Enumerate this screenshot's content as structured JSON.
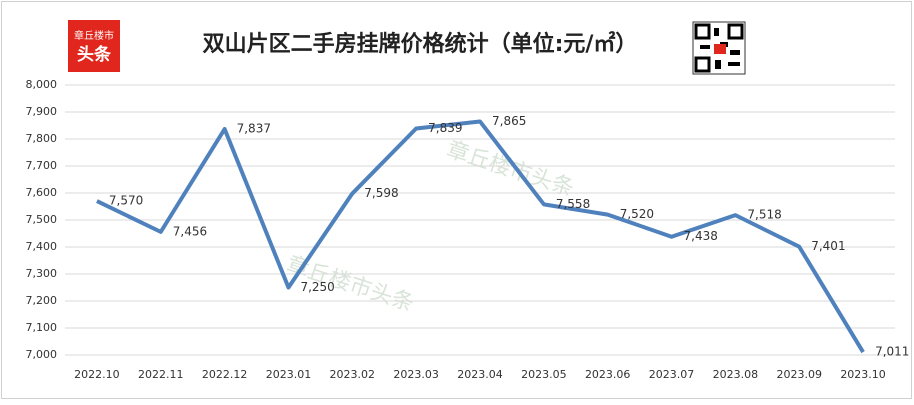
{
  "chart_data": {
    "type": "line",
    "title": "双山片区二手房挂牌价格统计（单位:元/㎡）",
    "logo": [
      "章丘楼市",
      "头条"
    ],
    "watermark": "章丘楼市头条",
    "categories": [
      "2022.10",
      "2022.11",
      "2022.12",
      "2023.01",
      "2023.02",
      "2023.03",
      "2023.04",
      "2023.05",
      "2023.06",
      "2023.07",
      "2023.08",
      "2023.09",
      "2023.10"
    ],
    "values": [
      7570,
      7456,
      7837,
      7250,
      7598,
      7839,
      7865,
      7558,
      7520,
      7438,
      7518,
      7401,
      7011
    ],
    "value_labels": [
      "7,570",
      "7,456",
      "7,837",
      "7,250",
      "7,598",
      "7,839",
      "7,865",
      "7,558",
      "7,520",
      "7,438",
      "7,518",
      "7,401",
      "7,011"
    ],
    "color": "#4f81bd",
    "ylim": [
      7000,
      8000
    ],
    "yticks": [
      {
        "value": 7000,
        "label": "7,000"
      },
      {
        "value": 7100,
        "label": "7,100"
      },
      {
        "value": 7200,
        "label": "7,200"
      },
      {
        "value": 7300,
        "label": "7,300"
      },
      {
        "value": 7400,
        "label": "7,400"
      },
      {
        "value": 7500,
        "label": "7,500"
      },
      {
        "value": 7600,
        "label": "7,600"
      },
      {
        "value": 7700,
        "label": "7,700"
      },
      {
        "value": 7800,
        "label": "7,800"
      },
      {
        "value": 7900,
        "label": "7,900"
      },
      {
        "value": 8000,
        "label": "8,000"
      }
    ],
    "grid": true
  }
}
